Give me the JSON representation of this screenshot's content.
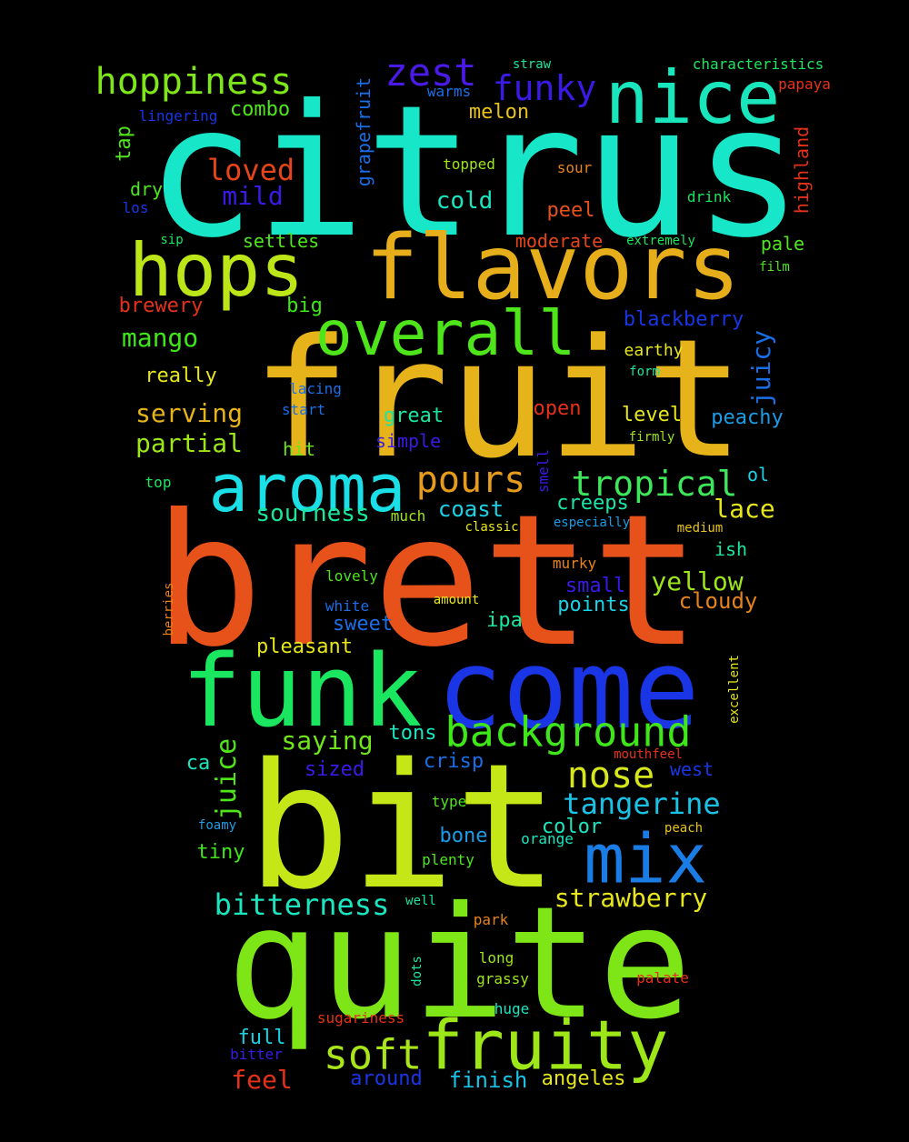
{
  "words": [
    {
      "text": "citrus",
      "color": "#17e6c8"
    },
    {
      "text": "fruit",
      "color": "#e6b31a"
    },
    {
      "text": "brett",
      "color": "#e6521a"
    },
    {
      "text": "come",
      "color": "#1a35e6"
    },
    {
      "text": "bit",
      "color": "#c5e617"
    },
    {
      "text": "quite",
      "color": "#7ee617"
    },
    {
      "text": "funk",
      "color": "#1ae660"
    },
    {
      "text": "flavors",
      "color": "#e6ae1a"
    },
    {
      "text": "hops",
      "color": "#bce617"
    },
    {
      "text": "nice",
      "color": "#1ae6bd"
    },
    {
      "text": "aroma",
      "color": "#1adfe6"
    },
    {
      "text": "overall",
      "color": "#4ee61a"
    },
    {
      "text": "fruity",
      "color": "#9de617"
    },
    {
      "text": "mix",
      "color": "#1a7de6"
    },
    {
      "text": "background",
      "color": "#3ee61a"
    },
    {
      "text": "soft",
      "color": "#a8e61a"
    },
    {
      "text": "tropical",
      "color": "#3ee65a"
    },
    {
      "text": "pours",
      "color": "#e69b1a"
    },
    {
      "text": "nose",
      "color": "#d6e61a"
    },
    {
      "text": "hoppiness",
      "color": "#7ee61a"
    },
    {
      "text": "zest",
      "color": "#4a1ae6"
    },
    {
      "text": "funky",
      "color": "#3a1ae6"
    },
    {
      "text": "tangerine",
      "color": "#1ac2e6"
    },
    {
      "text": "bitterness",
      "color": "#1ae6c0"
    },
    {
      "text": "strawberry",
      "color": "#e6e61a"
    },
    {
      "text": "loved",
      "color": "#e6451a"
    },
    {
      "text": "mild",
      "color": "#3a1ae6"
    },
    {
      "text": "sourness",
      "color": "#1ae69b"
    },
    {
      "text": "mango",
      "color": "#3ee61a"
    },
    {
      "text": "serving",
      "color": "#e6b31a"
    },
    {
      "text": "partial",
      "color": "#9de61a"
    },
    {
      "text": "juice",
      "color": "#4ee61a"
    },
    {
      "text": "yellow",
      "color": "#9de61a"
    },
    {
      "text": "saying",
      "color": "#6ee61a"
    },
    {
      "text": "lace",
      "color": "#e6e61a"
    },
    {
      "text": "combo",
      "color": "#4ee61a"
    },
    {
      "text": "melon",
      "color": "#e6c21a"
    },
    {
      "text": "cold",
      "color": "#1ae6c0"
    },
    {
      "text": "coast",
      "color": "#1ad2e6"
    },
    {
      "text": "creeps",
      "color": "#1ae6a8"
    },
    {
      "text": "great",
      "color": "#1ae6a0"
    },
    {
      "text": "level",
      "color": "#e6e61a"
    },
    {
      "text": "peachy",
      "color": "#1a9de6"
    },
    {
      "text": "juicy",
      "color": "#1a6ee6"
    },
    {
      "text": "blackberry",
      "color": "#1a35e6"
    },
    {
      "text": "cloudy",
      "color": "#e6821a"
    },
    {
      "text": "points",
      "color": "#1ad2e6"
    },
    {
      "text": "small",
      "color": "#3a1ae6"
    },
    {
      "text": "sized",
      "color": "#3a1ae6"
    },
    {
      "text": "crisp",
      "color": "#1a6ee6"
    },
    {
      "text": "tons",
      "color": "#1ae6c0"
    },
    {
      "text": "pleasant",
      "color": "#e6e61a"
    },
    {
      "text": "sweet",
      "color": "#1a6ee6"
    },
    {
      "text": "feel",
      "color": "#e6311a"
    },
    {
      "text": "around",
      "color": "#1a35e6"
    },
    {
      "text": "finish",
      "color": "#1ac2e6"
    },
    {
      "text": "angeles",
      "color": "#e6e61a"
    },
    {
      "text": "full",
      "color": "#1ad2e6"
    },
    {
      "text": "tiny",
      "color": "#3ee61a"
    },
    {
      "text": "bone",
      "color": "#1a9de6"
    },
    {
      "text": "color",
      "color": "#1ae6c0"
    },
    {
      "text": "ipa",
      "color": "#1ae6a0"
    },
    {
      "text": "big",
      "color": "#3ee61a"
    },
    {
      "text": "settles",
      "color": "#4ee61a"
    },
    {
      "text": "moderate",
      "color": "#e6451a"
    },
    {
      "text": "peel",
      "color": "#e6521a"
    },
    {
      "text": "pale",
      "color": "#4ee61a"
    },
    {
      "text": "brewery",
      "color": "#e6311a"
    },
    {
      "text": "really",
      "color": "#e6e61a"
    },
    {
      "text": "hit",
      "color": "#6ee61a"
    },
    {
      "text": "simple",
      "color": "#3a1ae6"
    },
    {
      "text": "open",
      "color": "#e6311a"
    },
    {
      "text": "dry",
      "color": "#4ee61a"
    },
    {
      "text": "tap",
      "color": "#4ee61a"
    },
    {
      "text": "grapefruit",
      "color": "#1a6ee6"
    },
    {
      "text": "highland",
      "color": "#e6311a"
    },
    {
      "text": "ol",
      "color": "#1ad2e6"
    },
    {
      "text": "ish",
      "color": "#1ae6a0"
    },
    {
      "text": "ca",
      "color": "#1ae6c0"
    },
    {
      "text": "west",
      "color": "#1a35e6"
    },
    {
      "text": "characteristics",
      "color": "#1ae660"
    },
    {
      "text": "papaya",
      "color": "#e6311a"
    },
    {
      "text": "straw",
      "color": "#1ae6a0"
    },
    {
      "text": "warms",
      "color": "#1a6ee6"
    },
    {
      "text": "lingering",
      "color": "#1a35e6"
    },
    {
      "text": "topped",
      "color": "#9de61a"
    },
    {
      "text": "sour",
      "color": "#e6821a"
    },
    {
      "text": "drink",
      "color": "#1ae660"
    },
    {
      "text": "los",
      "color": "#1a35e6"
    },
    {
      "text": "sip",
      "color": "#1ae660"
    },
    {
      "text": "extremely",
      "color": "#1ae660"
    },
    {
      "text": "film",
      "color": "#4ee61a"
    },
    {
      "text": "earthy",
      "color": "#e6e61a"
    },
    {
      "text": "form",
      "color": "#1ae6a0"
    },
    {
      "text": "lacing",
      "color": "#1a6ee6"
    },
    {
      "text": "start",
      "color": "#1a6ee6"
    },
    {
      "text": "firmly",
      "color": "#9de61a"
    },
    {
      "text": "top",
      "color": "#1ae660"
    },
    {
      "text": "smell",
      "color": "#3a1ae6"
    },
    {
      "text": "much",
      "color": "#9de61a"
    },
    {
      "text": "classic",
      "color": "#e6e61a"
    },
    {
      "text": "especially",
      "color": "#1a9de6"
    },
    {
      "text": "medium",
      "color": "#e6c21a"
    },
    {
      "text": "murky",
      "color": "#e6821a"
    },
    {
      "text": "lovely",
      "color": "#4ee61a"
    },
    {
      "text": "white",
      "color": "#1a6ee6"
    },
    {
      "text": "amount",
      "color": "#e6e61a"
    },
    {
      "text": "berries",
      "color": "#e6821a"
    },
    {
      "text": "excellent",
      "color": "#e6e61a"
    },
    {
      "text": "mouthfeel",
      "color": "#e6311a"
    },
    {
      "text": "type",
      "color": "#4ee61a"
    },
    {
      "text": "foamy",
      "color": "#1a9de6"
    },
    {
      "text": "peach",
      "color": "#e6c21a"
    },
    {
      "text": "orange",
      "color": "#1ae6c0"
    },
    {
      "text": "plenty",
      "color": "#4ee61a"
    },
    {
      "text": "well",
      "color": "#1ae6a0"
    },
    {
      "text": "park",
      "color": "#e6821a"
    },
    {
      "text": "dots",
      "color": "#1ae6a0"
    },
    {
      "text": "long",
      "color": "#9de61a"
    },
    {
      "text": "grassy",
      "color": "#9de61a"
    },
    {
      "text": "palate",
      "color": "#e6311a"
    },
    {
      "text": "sugariness",
      "color": "#e6311a"
    },
    {
      "text": "huge",
      "color": "#1ae6c0"
    },
    {
      "text": "bitter",
      "color": "#3a1ae6"
    }
  ]
}
